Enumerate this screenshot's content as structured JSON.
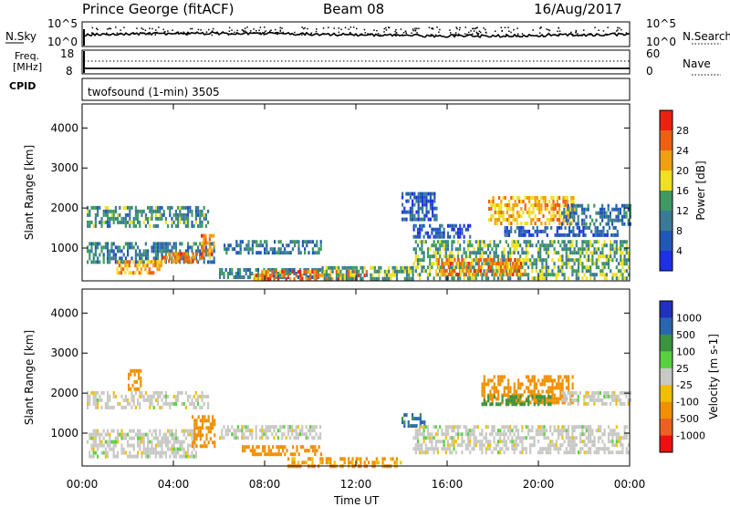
{
  "header": {
    "station": "Prince George (fitACF)",
    "beam": "Beam 08",
    "date": "16/Aug/2017"
  },
  "noise_panel": {
    "left_label": "N.Sky",
    "right_label": "N.Search",
    "left_ticks": [
      "10^5",
      "10^0"
    ],
    "right_ticks": [
      "10^5",
      "10^0"
    ]
  },
  "freq_panel": {
    "left_label_1": "Freq.",
    "left_label_2": "[MHz]",
    "right_label": "Nave",
    "left_ticks": [
      "18",
      "8"
    ],
    "right_ticks": [
      "60",
      "0"
    ]
  },
  "cpid": {
    "label": "CPID",
    "value": "twofsound (1-min) 3505"
  },
  "colors": {
    "power": [
      "#1e30e6",
      "#2058b8",
      "#3a7a96",
      "#3e9a60",
      "#f0e020",
      "#f0a010",
      "#ee6010",
      "#ee2010"
    ],
    "velocity": [
      "#2030c0",
      "#2a66b0",
      "#3a9440",
      "#58d040",
      "#c8c8c4",
      "#f0c000",
      "#f09000",
      "#ee6020",
      "#ee1010"
    ]
  },
  "chart_data": [
    {
      "type": "heatmap",
      "name": "power",
      "title": "",
      "xlabel": "",
      "ylabel": "Slant Range [km]",
      "x_ticks": [
        "00:00",
        "04:00",
        "08:00",
        "12:00",
        "16:00",
        "20:00",
        "00:00"
      ],
      "y_ticks": [
        "1000",
        "2000",
        "3000",
        "4000"
      ],
      "xlim": [
        0,
        24
      ],
      "ylim": [
        180,
        4600
      ],
      "colorbar": {
        "label": "Power [dB]",
        "ticks": [
          "4",
          "8",
          "12",
          "16",
          "20",
          "24",
          "28"
        ],
        "range": [
          0,
          32
        ]
      },
      "regions": [
        {
          "t0": 0.2,
          "t1": 5.5,
          "r0": 1550,
          "r1": 2050,
          "v": 12
        },
        {
          "t0": 0.2,
          "t1": 5.8,
          "r0": 650,
          "r1": 1150,
          "v": 10
        },
        {
          "t0": 1.5,
          "t1": 3.5,
          "r0": 350,
          "r1": 700,
          "v": 22
        },
        {
          "t0": 3.5,
          "t1": 5.3,
          "r0": 650,
          "r1": 900,
          "v": 25
        },
        {
          "t0": 5.2,
          "t1": 5.8,
          "r0": 800,
          "r1": 1350,
          "v": 24
        },
        {
          "t0": 6.2,
          "t1": 10.5,
          "r0": 850,
          "r1": 1200,
          "v": 9
        },
        {
          "t0": 6.0,
          "t1": 10.5,
          "r0": 250,
          "r1": 500,
          "v": 11
        },
        {
          "t0": 7.5,
          "t1": 12.5,
          "r0": 180,
          "r1": 450,
          "v": 24
        },
        {
          "t0": 10.5,
          "t1": 14.5,
          "r0": 250,
          "r1": 550,
          "v": 13
        },
        {
          "t0": 14.0,
          "t1": 15.5,
          "r0": 1700,
          "r1": 2400,
          "v": 7
        },
        {
          "t0": 14.5,
          "t1": 17.0,
          "r0": 1300,
          "r1": 1600,
          "v": 6
        },
        {
          "t0": 14.5,
          "t1": 24.0,
          "r0": 250,
          "r1": 1200,
          "v": 14
        },
        {
          "t0": 15.5,
          "t1": 19.5,
          "r0": 350,
          "r1": 750,
          "v": 24
        },
        {
          "t0": 17.8,
          "t1": 21.5,
          "r0": 1650,
          "r1": 2300,
          "v": 21
        },
        {
          "t0": 21.0,
          "t1": 24.0,
          "r0": 1600,
          "r1": 2100,
          "v": 9
        },
        {
          "t0": 18.5,
          "t1": 23.5,
          "r0": 1350,
          "r1": 1550,
          "v": 7
        }
      ]
    },
    {
      "type": "heatmap",
      "name": "velocity",
      "title": "",
      "xlabel": "Time UT",
      "ylabel": "Slant Range [km]",
      "x_ticks": [
        "00:00",
        "04:00",
        "08:00",
        "12:00",
        "16:00",
        "20:00",
        "00:00"
      ],
      "y_ticks": [
        "1000",
        "2000",
        "3000",
        "4000"
      ],
      "xlim": [
        0,
        24
      ],
      "ylim": [
        180,
        4600
      ],
      "colorbar": {
        "label": "Velocity [m s-1]",
        "ticks": [
          "1000",
          "500",
          "100",
          "25",
          "-25",
          "-100",
          "-500",
          "-1000"
        ],
        "range": [
          -1500,
          1500
        ]
      },
      "regions": [
        {
          "t0": 0.2,
          "t1": 5.5,
          "r0": 1600,
          "r1": 2050,
          "v": 0
        },
        {
          "t0": 0.2,
          "t1": 5.0,
          "r0": 400,
          "r1": 1100,
          "v": 0
        },
        {
          "t0": 2.0,
          "t1": 2.6,
          "r0": 2100,
          "r1": 2600,
          "v": -300
        },
        {
          "t0": 4.8,
          "t1": 5.8,
          "r0": 700,
          "r1": 1450,
          "v": -300
        },
        {
          "t0": 6.0,
          "t1": 10.5,
          "r0": 900,
          "r1": 1200,
          "v": 0
        },
        {
          "t0": 7.0,
          "t1": 10.5,
          "r0": 450,
          "r1": 700,
          "v": -300
        },
        {
          "t0": 9.0,
          "t1": 14.0,
          "r0": 180,
          "r1": 400,
          "v": -120
        },
        {
          "t0": 14.0,
          "t1": 15.0,
          "r0": 1200,
          "r1": 1500,
          "v": 600
        },
        {
          "t0": 14.5,
          "t1": 24.0,
          "r0": 500,
          "r1": 1200,
          "v": 0
        },
        {
          "t0": 17.5,
          "t1": 21.5,
          "r0": 1800,
          "r1": 2450,
          "v": -300
        },
        {
          "t0": 17.5,
          "t1": 20.5,
          "r0": 1700,
          "r1": 1950,
          "v": 200
        },
        {
          "t0": 21.0,
          "t1": 24.0,
          "r0": 1700,
          "r1": 2050,
          "v": 0
        }
      ]
    }
  ]
}
